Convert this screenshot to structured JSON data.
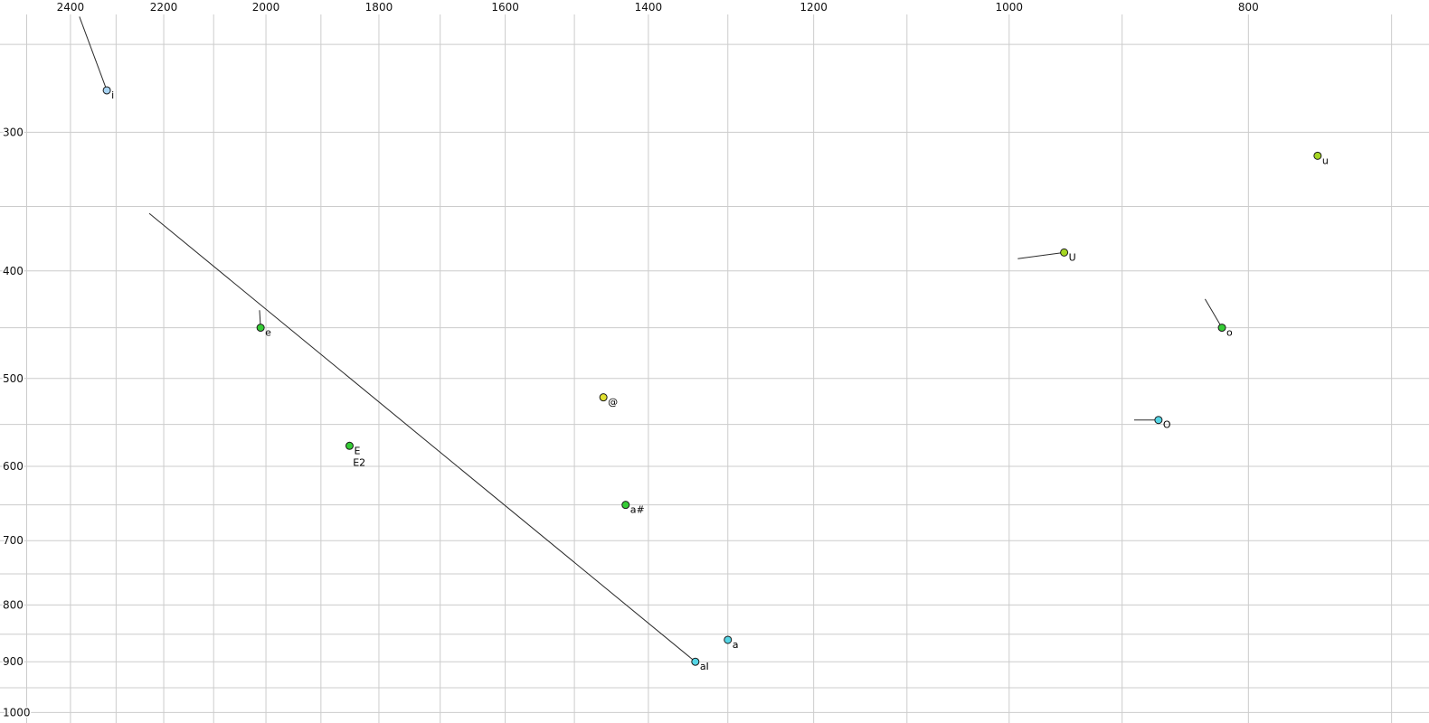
{
  "chart_data": {
    "type": "scatter",
    "title": "",
    "x_scale": "log",
    "y_scale": "log",
    "x_reversed": true,
    "x_domain": [
      2563,
      676
    ],
    "y_domain": [
      228,
      1022
    ],
    "x_major_ticks": [
      2400,
      2200,
      2000,
      1800,
      1600,
      1400,
      1200,
      1000,
      800
    ],
    "y_major_ticks": [
      300,
      400,
      500,
      600,
      700,
      800,
      900,
      1000
    ],
    "x_gridlines": [
      2500,
      2400,
      2300,
      2200,
      2100,
      2000,
      1900,
      1800,
      1700,
      1600,
      1500,
      1400,
      1300,
      1200,
      1100,
      1000,
      900,
      800,
      700
    ],
    "y_gridlines": [
      250,
      300,
      350,
      400,
      450,
      500,
      550,
      600,
      650,
      700,
      750,
      800,
      850,
      900,
      950,
      1000
    ],
    "grid_on": true,
    "grid_color": "#cccccc",
    "line_color": "#2a2a2a",
    "point_stroke": "#1a1a1a",
    "background": "#ffffff",
    "points": [
      {
        "label": "i",
        "f1": 275,
        "f2": 2320,
        "color": "#a7d3f2",
        "traj": {
          "f1": 236,
          "f2": 2380
        }
      },
      {
        "label": "e",
        "f1": 450,
        "f2": 2010,
        "color": "#35cc35",
        "traj": {
          "f1": 434,
          "f2": 2012
        }
      },
      {
        "label": "E",
        "f1": 575,
        "f2": 1850,
        "color": "#35cc35"
      },
      {
        "label": "@",
        "f1": 520,
        "f2": 1460,
        "color": "#e0e030"
      },
      {
        "label": "a#",
        "f1": 650,
        "f2": 1430,
        "color": "#35cc35"
      },
      {
        "label": "aI",
        "f1": 900,
        "f2": 1340,
        "color": "#55d5e5",
        "traj": {
          "f1": 355,
          "f2": 2230
        }
      },
      {
        "label": "a",
        "f1": 860,
        "f2": 1300,
        "color": "#55d5e5"
      },
      {
        "label": "U",
        "f1": 385,
        "f2": 950,
        "color": "#a5d622",
        "traj": {
          "f1": 390,
          "f2": 992
        }
      },
      {
        "label": "O",
        "f1": 545,
        "f2": 870,
        "color": "#55d5e5",
        "traj": {
          "f1": 545,
          "f2": 890
        }
      },
      {
        "label": "o",
        "f1": 450,
        "f2": 820,
        "color": "#35cc35",
        "traj": {
          "f1": 424,
          "f2": 833
        }
      },
      {
        "label": "u",
        "f1": 315,
        "f2": 750,
        "color": "#a5d622"
      }
    ],
    "extra_labels": [
      {
        "text": "E2",
        "f1": 595,
        "f2": 1852
      }
    ]
  }
}
